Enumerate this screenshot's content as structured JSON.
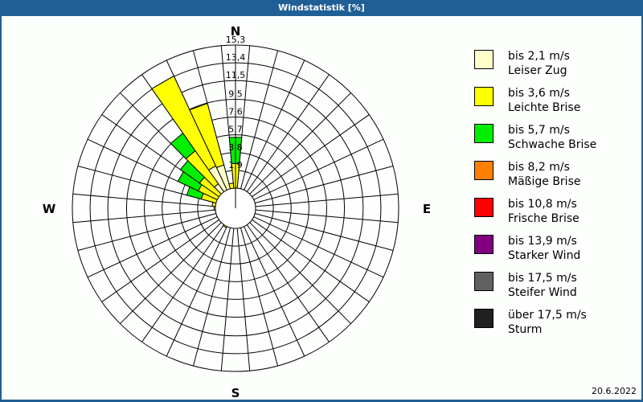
{
  "window": {
    "title": "Windstatistik [%]"
  },
  "compass": {
    "n": "N",
    "e": "E",
    "s": "S",
    "w": "W"
  },
  "date": "20.6.2022",
  "legend": [
    {
      "range": "bis 2,1 m/s",
      "name": "Leiser Zug",
      "color": "#ffffcc"
    },
    {
      "range": "bis 3,6 m/s",
      "name": "Leichte Brise",
      "color": "#ffff00"
    },
    {
      "range": "bis 5,7 m/s",
      "name": "Schwache Brise",
      "color": "#00ee00"
    },
    {
      "range": "bis 8,2 m/s",
      "name": "Mäßige Brise",
      "color": "#ff8000"
    },
    {
      "range": "bis 10,8 m/s",
      "name": "Frische Brise",
      "color": "#ff0000"
    },
    {
      "range": "bis 13,9 m/s",
      "name": "Starker Wind",
      "color": "#800080"
    },
    {
      "range": "bis 17,5 m/s",
      "name": "Steifer Wind",
      "color": "#606060"
    },
    {
      "range": "über 17,5 m/s",
      "name": "Sturm",
      "color": "#202020"
    }
  ],
  "chart_data": {
    "type": "wind-rose",
    "title": "Windstatistik [%]",
    "unit": "%",
    "ring_labels": [
      "1,9",
      "3,8",
      "5,7",
      "7,6",
      "9,5",
      "11,5",
      "13,4",
      "15,3"
    ],
    "ring_values": [
      1.9,
      3.8,
      5.7,
      7.6,
      9.5,
      11.5,
      13.4,
      15.3
    ],
    "rmax": 15.3,
    "sector_width_deg": 10,
    "series_names": [
      "bis 2,1 m/s",
      "bis 3,6 m/s",
      "bis 5,7 m/s"
    ],
    "sectors": [
      {
        "dir": 0,
        "values": [
          1.5,
          3.3,
          2.8
        ]
      },
      {
        "dir": 10,
        "values": [
          0.3,
          0.2,
          0.9
        ]
      },
      {
        "dir": 20,
        "values": [
          0.2,
          0.0,
          0.0
        ]
      },
      {
        "dir": 30,
        "values": [
          0.1,
          0.0,
          0.0
        ]
      },
      {
        "dir": 190,
        "values": [
          0.4,
          0.3,
          0.0
        ]
      },
      {
        "dir": 200,
        "values": [
          0.5,
          1.1,
          0.0
        ]
      },
      {
        "dir": 210,
        "values": [
          0.6,
          1.7,
          0.0
        ]
      },
      {
        "dir": 220,
        "values": [
          0.4,
          0.7,
          0.0
        ]
      },
      {
        "dir": 230,
        "values": [
          0.4,
          0.5,
          0.0
        ]
      },
      {
        "dir": 240,
        "values": [
          0.6,
          0.8,
          0.0
        ]
      },
      {
        "dir": 250,
        "values": [
          0.8,
          1.0,
          0.0
        ]
      },
      {
        "dir": 260,
        "values": [
          0.9,
          1.0,
          0.0
        ]
      },
      {
        "dir": 270,
        "values": [
          1.2,
          1.1,
          0.0
        ]
      },
      {
        "dir": 280,
        "values": [
          1.3,
          1.2,
          0.0
        ]
      },
      {
        "dir": 290,
        "values": [
          1.5,
          2.3,
          1.6
        ]
      },
      {
        "dir": 300,
        "values": [
          1.8,
          2.6,
          2.4
        ]
      },
      {
        "dir": 310,
        "values": [
          2.1,
          2.6,
          2.5
        ]
      },
      {
        "dir": 320,
        "values": [
          3.2,
          4.3,
          2.3
        ]
      },
      {
        "dir": 330,
        "values": [
          5.0,
          10.6,
          0.0
        ]
      },
      {
        "dir": 340,
        "values": [
          4.8,
          6.8,
          0.0
        ]
      },
      {
        "dir": 350,
        "values": [
          1.2,
          1.5,
          0.0
        ]
      }
    ]
  }
}
